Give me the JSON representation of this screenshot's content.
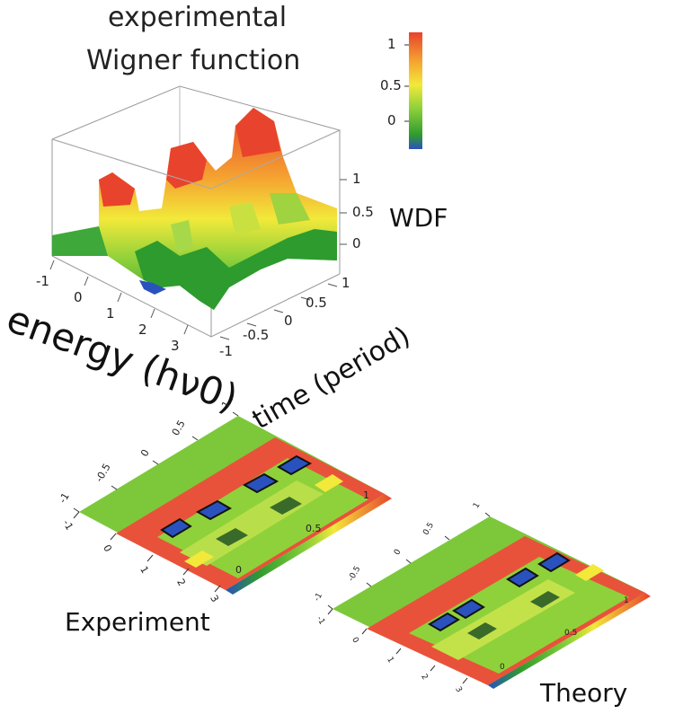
{
  "title_line1": "experimental",
  "title_line2": "Wigner function",
  "z_label": "WDF",
  "x_label": "energy (hν0)",
  "y_label": "time (period)",
  "caption_experiment": "Experiment",
  "caption_theory": "Theory",
  "colorbar": {
    "ticks": [
      "1",
      "0.5",
      "0"
    ],
    "stops": [
      "#2a52be",
      "#2e9b2e",
      "#8fd13a",
      "#f2e93a",
      "#f5a431",
      "#e8432c"
    ]
  },
  "chart_data": [
    {
      "type": "surface3d",
      "title": "experimental Wigner function",
      "xlabel": "energy (hν0)",
      "ylabel": "time (period)",
      "zlabel": "WDF",
      "x_ticks": [
        "-1",
        "0",
        "1",
        "2",
        "3"
      ],
      "y_ticks": [
        "-1",
        "-0.5",
        "0",
        "0.5",
        "1"
      ],
      "z_ticks": [
        "0",
        "0.5",
        "1"
      ],
      "xlim": [
        -1,
        3.5
      ],
      "ylim": [
        -1,
        1
      ],
      "zlim": [
        -0.2,
        1.2
      ],
      "colorbar_ticks": [
        "1",
        "0.5",
        "0"
      ]
    },
    {
      "type": "heatmap",
      "title": "Experiment",
      "x_ticks": [
        "-1",
        "0",
        "1",
        "2",
        "3"
      ],
      "y_ticks": [
        "-1",
        "-0.5",
        "0",
        "0.5",
        "1"
      ],
      "colorbar_ticks": [
        "0",
        "0.5",
        "1"
      ]
    },
    {
      "type": "heatmap",
      "title": "Theory",
      "x_ticks": [
        "-1",
        "0",
        "1",
        "2",
        "3"
      ],
      "y_ticks": [
        "-1",
        "-0.5",
        "0",
        "0.5",
        "1"
      ],
      "colorbar_ticks": [
        "0",
        "0.5",
        "1"
      ]
    }
  ]
}
